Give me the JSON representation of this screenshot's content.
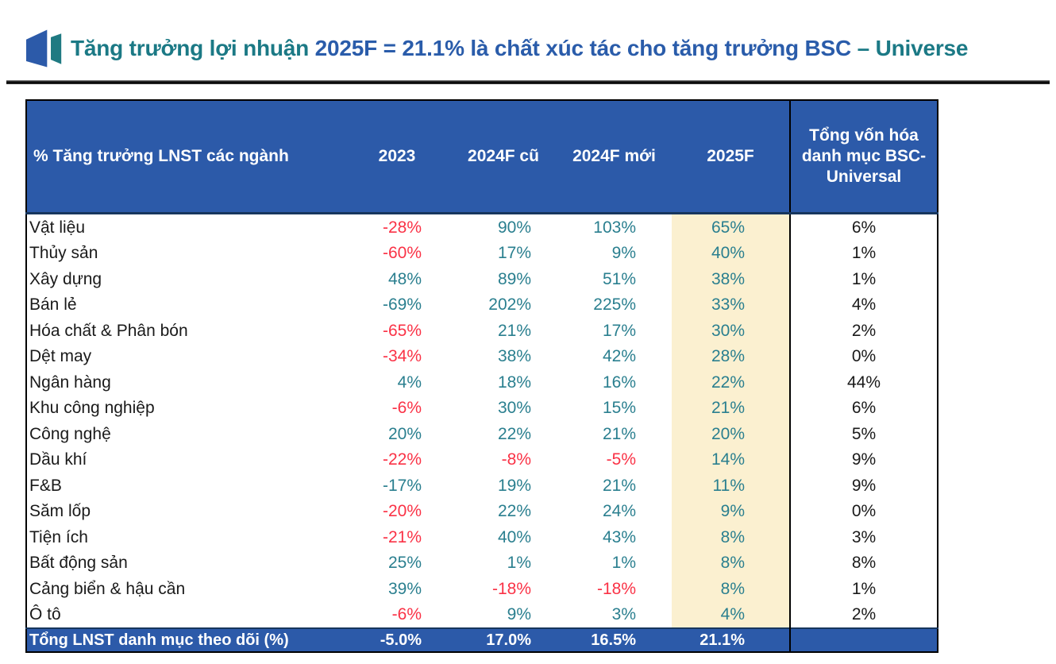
{
  "title": {
    "segments": [
      {
        "text": "Tăng trưởng lợi nhuận ",
        "color": "teal"
      },
      {
        "text": "2025F = 21.1% là chất xúc tác cho tăng trưởng BSC ",
        "color": "blue"
      },
      {
        "text": "– Universe",
        "color": "teal"
      }
    ],
    "full_text": "Tăng trưởng lợi nhuận 2025F = 21.1% là chất xúc tác cho tăng trưởng BSC – Universe"
  },
  "icons": {
    "logo": "bsc-logo-icon"
  },
  "colors": {
    "header_blue": "#2C5AA9",
    "header_border_navy": "#17365D",
    "value_teal": "#2A7F8F",
    "value_red": "#FA3246",
    "value_dark": "#1A1A1A",
    "highlight_cream": "#FBF0D0",
    "title_teal": "#1B7985",
    "title_blue": "#2A5CAA"
  },
  "table": {
    "columns": [
      "% Tăng trưởng LNST các ngành",
      "2023",
      "2024F cũ",
      "2024F mới",
      "2025F",
      "Tổng vốn hóa danh mục BSC-Universal"
    ],
    "rows": [
      {
        "label": "Vật liệu",
        "values": [
          {
            "text": "-28%",
            "color": "red"
          },
          {
            "text": "90%",
            "color": "teal"
          },
          {
            "text": "103%",
            "color": "teal"
          },
          {
            "text": "65%",
            "color": "teal"
          },
          {
            "text": "6%",
            "color": "dark"
          }
        ]
      },
      {
        "label": "Thủy sản",
        "values": [
          {
            "text": "-60%",
            "color": "red"
          },
          {
            "text": "17%",
            "color": "teal"
          },
          {
            "text": "9%",
            "color": "teal"
          },
          {
            "text": "40%",
            "color": "teal"
          },
          {
            "text": "1%",
            "color": "dark"
          }
        ]
      },
      {
        "label": "Xây dựng",
        "values": [
          {
            "text": "48%",
            "color": "teal"
          },
          {
            "text": "89%",
            "color": "teal"
          },
          {
            "text": "51%",
            "color": "teal"
          },
          {
            "text": "38%",
            "color": "teal"
          },
          {
            "text": "1%",
            "color": "dark"
          }
        ]
      },
      {
        "label": "Bán lẻ",
        "values": [
          {
            "text": "-69%",
            "color": "teal"
          },
          {
            "text": "202%",
            "color": "teal"
          },
          {
            "text": "225%",
            "color": "teal"
          },
          {
            "text": "33%",
            "color": "teal"
          },
          {
            "text": "4%",
            "color": "dark"
          }
        ]
      },
      {
        "label": "Hóa chất & Phân bón",
        "values": [
          {
            "text": "-65%",
            "color": "red"
          },
          {
            "text": "21%",
            "color": "teal"
          },
          {
            "text": "17%",
            "color": "teal"
          },
          {
            "text": "30%",
            "color": "teal"
          },
          {
            "text": "2%",
            "color": "dark"
          }
        ]
      },
      {
        "label": "Dệt may",
        "values": [
          {
            "text": "-34%",
            "color": "red"
          },
          {
            "text": "38%",
            "color": "teal"
          },
          {
            "text": "42%",
            "color": "teal"
          },
          {
            "text": "28%",
            "color": "teal"
          },
          {
            "text": "0%",
            "color": "dark"
          }
        ]
      },
      {
        "label": "Ngân hàng",
        "values": [
          {
            "text": "4%",
            "color": "teal"
          },
          {
            "text": "18%",
            "color": "teal"
          },
          {
            "text": "16%",
            "color": "teal"
          },
          {
            "text": "22%",
            "color": "teal"
          },
          {
            "text": "44%",
            "color": "dark"
          }
        ]
      },
      {
        "label": "Khu công nghiệp",
        "values": [
          {
            "text": "-6%",
            "color": "red"
          },
          {
            "text": "30%",
            "color": "teal"
          },
          {
            "text": "15%",
            "color": "teal"
          },
          {
            "text": "21%",
            "color": "teal"
          },
          {
            "text": "6%",
            "color": "dark"
          }
        ]
      },
      {
        "label": "Công nghệ",
        "values": [
          {
            "text": "20%",
            "color": "teal"
          },
          {
            "text": "22%",
            "color": "teal"
          },
          {
            "text": "21%",
            "color": "teal"
          },
          {
            "text": "20%",
            "color": "teal"
          },
          {
            "text": "5%",
            "color": "dark"
          }
        ]
      },
      {
        "label": "Dầu khí",
        "values": [
          {
            "text": "-22%",
            "color": "red"
          },
          {
            "text": "-8%",
            "color": "red"
          },
          {
            "text": "-5%",
            "color": "red"
          },
          {
            "text": "14%",
            "color": "teal"
          },
          {
            "text": "9%",
            "color": "dark"
          }
        ]
      },
      {
        "label": "F&B",
        "values": [
          {
            "text": "-17%",
            "color": "teal"
          },
          {
            "text": "19%",
            "color": "teal"
          },
          {
            "text": "21%",
            "color": "teal"
          },
          {
            "text": "11%",
            "color": "teal"
          },
          {
            "text": "9%",
            "color": "dark"
          }
        ]
      },
      {
        "label": "Săm lốp",
        "values": [
          {
            "text": "-20%",
            "color": "red"
          },
          {
            "text": "22%",
            "color": "teal"
          },
          {
            "text": "24%",
            "color": "teal"
          },
          {
            "text": "9%",
            "color": "teal"
          },
          {
            "text": "0%",
            "color": "dark"
          }
        ]
      },
      {
        "label": "Tiện ích",
        "values": [
          {
            "text": "-21%",
            "color": "red"
          },
          {
            "text": "40%",
            "color": "teal"
          },
          {
            "text": "43%",
            "color": "teal"
          },
          {
            "text": "8%",
            "color": "teal"
          },
          {
            "text": "3%",
            "color": "dark"
          }
        ]
      },
      {
        "label": "Bất động sản",
        "values": [
          {
            "text": "25%",
            "color": "teal"
          },
          {
            "text": "1%",
            "color": "teal"
          },
          {
            "text": "1%",
            "color": "teal"
          },
          {
            "text": "8%",
            "color": "teal"
          },
          {
            "text": "8%",
            "color": "dark"
          }
        ]
      },
      {
        "label": "Cảng biển & hậu cần",
        "values": [
          {
            "text": "39%",
            "color": "teal"
          },
          {
            "text": "-18%",
            "color": "red"
          },
          {
            "text": "-18%",
            "color": "red"
          },
          {
            "text": "8%",
            "color": "teal"
          },
          {
            "text": "1%",
            "color": "dark"
          }
        ]
      },
      {
        "label": "Ô tô",
        "values": [
          {
            "text": "-6%",
            "color": "red"
          },
          {
            "text": "9%",
            "color": "teal"
          },
          {
            "text": "3%",
            "color": "teal"
          },
          {
            "text": "4%",
            "color": "teal"
          },
          {
            "text": "2%",
            "color": "dark"
          }
        ]
      }
    ],
    "footer": {
      "label": "Tổng LNST danh mục theo dõi (%)",
      "values": [
        "-5.0%",
        "17.0%",
        "16.5%",
        "21.1%",
        ""
      ]
    }
  }
}
